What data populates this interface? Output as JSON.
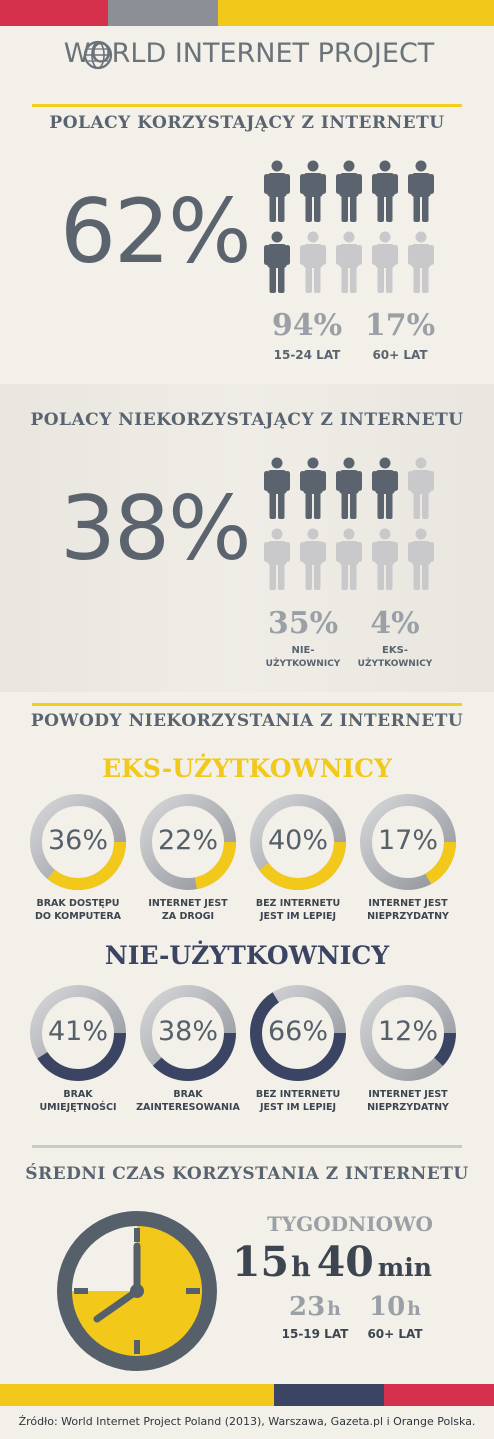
{
  "header": {
    "title": "WORLD INTERNET PROJECT"
  },
  "colors": {
    "yellow": "#f2c91a",
    "gray": "#56606a",
    "lightgray": "#c9c9cc",
    "navy": "#3b4462",
    "red": "#d5304b"
  },
  "users": {
    "heading": "POLACY KORZYSTAJĄCY Z INTERNETU",
    "percent": "62%",
    "icons_filled": 6,
    "icons_total": 10,
    "stat1": {
      "value": "94%",
      "label": "15-24 LAT"
    },
    "stat2": {
      "value": "17%",
      "label": "60+ LAT"
    }
  },
  "nonusers": {
    "heading": "POLACY NIEKORZYSTAJĄCY Z INTERNETU",
    "percent": "38%",
    "icons_filled": 4,
    "icons_total": 10,
    "stat1": {
      "value": "35%",
      "label1": "NIE-",
      "label2": "UŻYTKOWNICY"
    },
    "stat2": {
      "value": "4%",
      "label1": "EKS-",
      "label2": "UŻYTKOWNICY"
    }
  },
  "reasons": {
    "heading": "POWODY NIEKORZYSTANIA Z INTERNETU",
    "ex_heading": "EKS-UŻYTKOWNICY",
    "ex_items": [
      {
        "pct": "36%",
        "value": 36,
        "cap1": "BRAK DOSTĘPU",
        "cap2": "DO KOMPUTERA"
      },
      {
        "pct": "22%",
        "value": 22,
        "cap1": "INTERNET JEST",
        "cap2": "ZA DROGI"
      },
      {
        "pct": "40%",
        "value": 40,
        "cap1": "BEZ INTERNETU",
        "cap2": "JEST IM LEPIEJ"
      },
      {
        "pct": "17%",
        "value": 17,
        "cap1": "INTERNET JEST",
        "cap2": "NIEPRZYDATNY"
      }
    ],
    "non_heading": "NIE-UŻYTKOWNICY",
    "non_items": [
      {
        "pct": "41%",
        "value": 41,
        "cap1": "BRAK",
        "cap2": "UMIEJĘTNOŚCI"
      },
      {
        "pct": "38%",
        "value": 38,
        "cap1": "BRAK",
        "cap2": "ZAINTERESOWANIA"
      },
      {
        "pct": "66%",
        "value": 66,
        "cap1": "BEZ INTERNETU",
        "cap2": "JEST IM LEPIEJ"
      },
      {
        "pct": "12%",
        "value": 12,
        "cap1": "INTERNET JEST",
        "cap2": "NIEPRZYDATNY"
      }
    ]
  },
  "time": {
    "heading": "ŚREDNI CZAS KORZYSTANIA Z INTERNETU",
    "weekly": "TYGODNIOWO",
    "hours": "15",
    "h": "h",
    "minutes": "40",
    "min": "min",
    "teen_hours": "23",
    "teen_h": "h",
    "teen_label": "15-19 LAT",
    "senior_hours": "10",
    "senior_h": "h",
    "senior_label": "60+ LAT"
  },
  "footer": {
    "source": "Źródło: World Internet Project Poland (2013), Warszawa, Gazeta.pl i Orange Polska."
  }
}
